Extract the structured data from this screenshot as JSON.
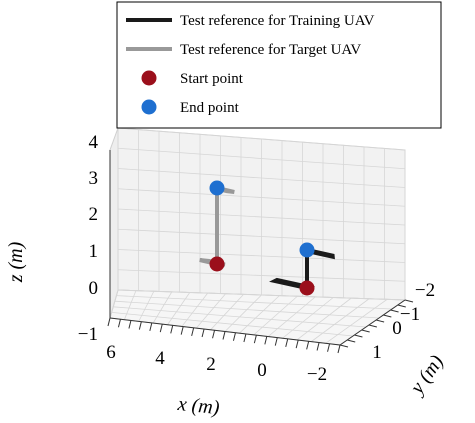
{
  "chart_data": {
    "type": "line3d",
    "xlabel": "x (m)",
    "ylabel": "y (m)",
    "zlabel": "z (m)",
    "x_ticks": [
      "6",
      "4",
      "2",
      "0",
      "−2"
    ],
    "y_ticks": [
      "−2",
      "−1",
      "0",
      "1"
    ],
    "z_ticks": [
      "−1",
      "0",
      "1",
      "2",
      "3",
      "4"
    ],
    "legend": {
      "placement": "top-right",
      "entries": [
        {
          "label": "Test reference for Training UAV",
          "kind": "line",
          "color": "#1a1a1a"
        },
        {
          "label": "Test reference for Target UAV",
          "kind": "line",
          "color": "#999999"
        },
        {
          "label": "Start point",
          "kind": "marker",
          "color": "#9b0f1b"
        },
        {
          "label": "End point",
          "kind": "marker",
          "color": "#1e6fd0"
        }
      ]
    },
    "series": [
      {
        "name": "Test reference for Training UAV",
        "color": "#1a1a1a",
        "paths": [
          [
            [
              -1,
              0,
              1.0
            ],
            [
              -1,
              0,
              2.0
            ]
          ],
          [
            [
              -1,
              0,
              1.0
            ],
            [
              0,
              -1,
              1.0
            ],
            [
              1,
              0,
              1.0
            ],
            [
              0,
              1,
              1.0
            ],
            [
              -1,
              0,
              1.0
            ]
          ],
          [
            [
              -1,
              0,
              2.0
            ],
            [
              -1.8,
              -0.6,
              2.0
            ],
            [
              -2.6,
              0.1,
              2.0
            ],
            [
              -1.8,
              0.8,
              2.0
            ],
            [
              -1,
              0,
              2.0
            ]
          ]
        ]
      },
      {
        "name": "Test reference for Target UAV",
        "color": "#999999",
        "paths": [
          [
            [
              5,
              0,
              1.0
            ],
            [
              5,
              0,
              3.0
            ]
          ],
          [
            [
              5,
              0,
              1.0
            ],
            [
              5.6,
              1.0,
              1.0
            ],
            [
              6.2,
              0.6,
              1.0
            ],
            [
              5.7,
              -0.4,
              1.0
            ],
            [
              5,
              0,
              1.0
            ]
          ],
          [
            [
              5,
              0,
              3.0
            ],
            [
              4.6,
              -0.6,
              3.0
            ],
            [
              4.0,
              -0.3,
              3.0
            ],
            [
              4.3,
              0.4,
              3.0
            ],
            [
              5,
              0,
              3.0
            ]
          ]
        ]
      }
    ],
    "points": [
      {
        "series": "Test reference for Training UAV",
        "kind": "Start point",
        "x": -1,
        "y": 0,
        "z": 1.0,
        "color": "#9b0f1b"
      },
      {
        "series": "Test reference for Training UAV",
        "kind": "End point",
        "x": -1,
        "y": 0,
        "z": 2.0,
        "color": "#1e6fd0"
      },
      {
        "series": "Test reference for Target UAV",
        "kind": "Start point",
        "x": 5,
        "y": 0,
        "z": 1.0,
        "color": "#9b0f1b"
      },
      {
        "series": "Test reference for Target UAV",
        "kind": "End point",
        "x": 5,
        "y": 0,
        "z": 3.0,
        "color": "#1e6fd0"
      }
    ],
    "xlim": [
      -3,
      6
    ],
    "ylim": [
      -2.5,
      1.5
    ],
    "zlim": [
      -1,
      4.5
    ],
    "grid": true
  }
}
